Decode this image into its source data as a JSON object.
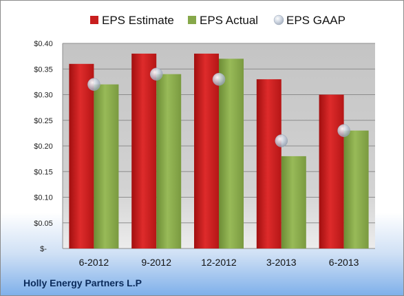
{
  "chart_data": {
    "type": "bar",
    "categories": [
      "6-2012",
      "9-2012",
      "12-2012",
      "3-2013",
      "6-2013"
    ],
    "series": [
      {
        "name": "EPS Estimate",
        "kind": "bar",
        "color": "#c81e1e",
        "values": [
          0.36,
          0.38,
          0.38,
          0.33,
          0.3
        ]
      },
      {
        "name": "EPS Actual",
        "kind": "bar",
        "color": "#86a84a",
        "values": [
          0.32,
          0.34,
          0.37,
          0.18,
          0.23
        ]
      },
      {
        "name": "EPS GAAP",
        "kind": "marker",
        "color": "#b8c4d6",
        "values": [
          0.32,
          0.34,
          0.33,
          0.21,
          0.23
        ]
      }
    ],
    "ylim": [
      0,
      0.4
    ],
    "yticks": [
      0,
      0.05,
      0.1,
      0.15,
      0.2,
      0.25,
      0.3,
      0.35,
      0.4
    ],
    "ytick_labels": [
      "$-",
      "$0.05",
      "$0.10",
      "$0.15",
      "$0.20",
      "$0.25",
      "$0.30",
      "$0.35",
      "$0.40"
    ],
    "legend_position": "top",
    "grid": true
  },
  "footer": {
    "company": "Holly Energy Partners L.P"
  }
}
